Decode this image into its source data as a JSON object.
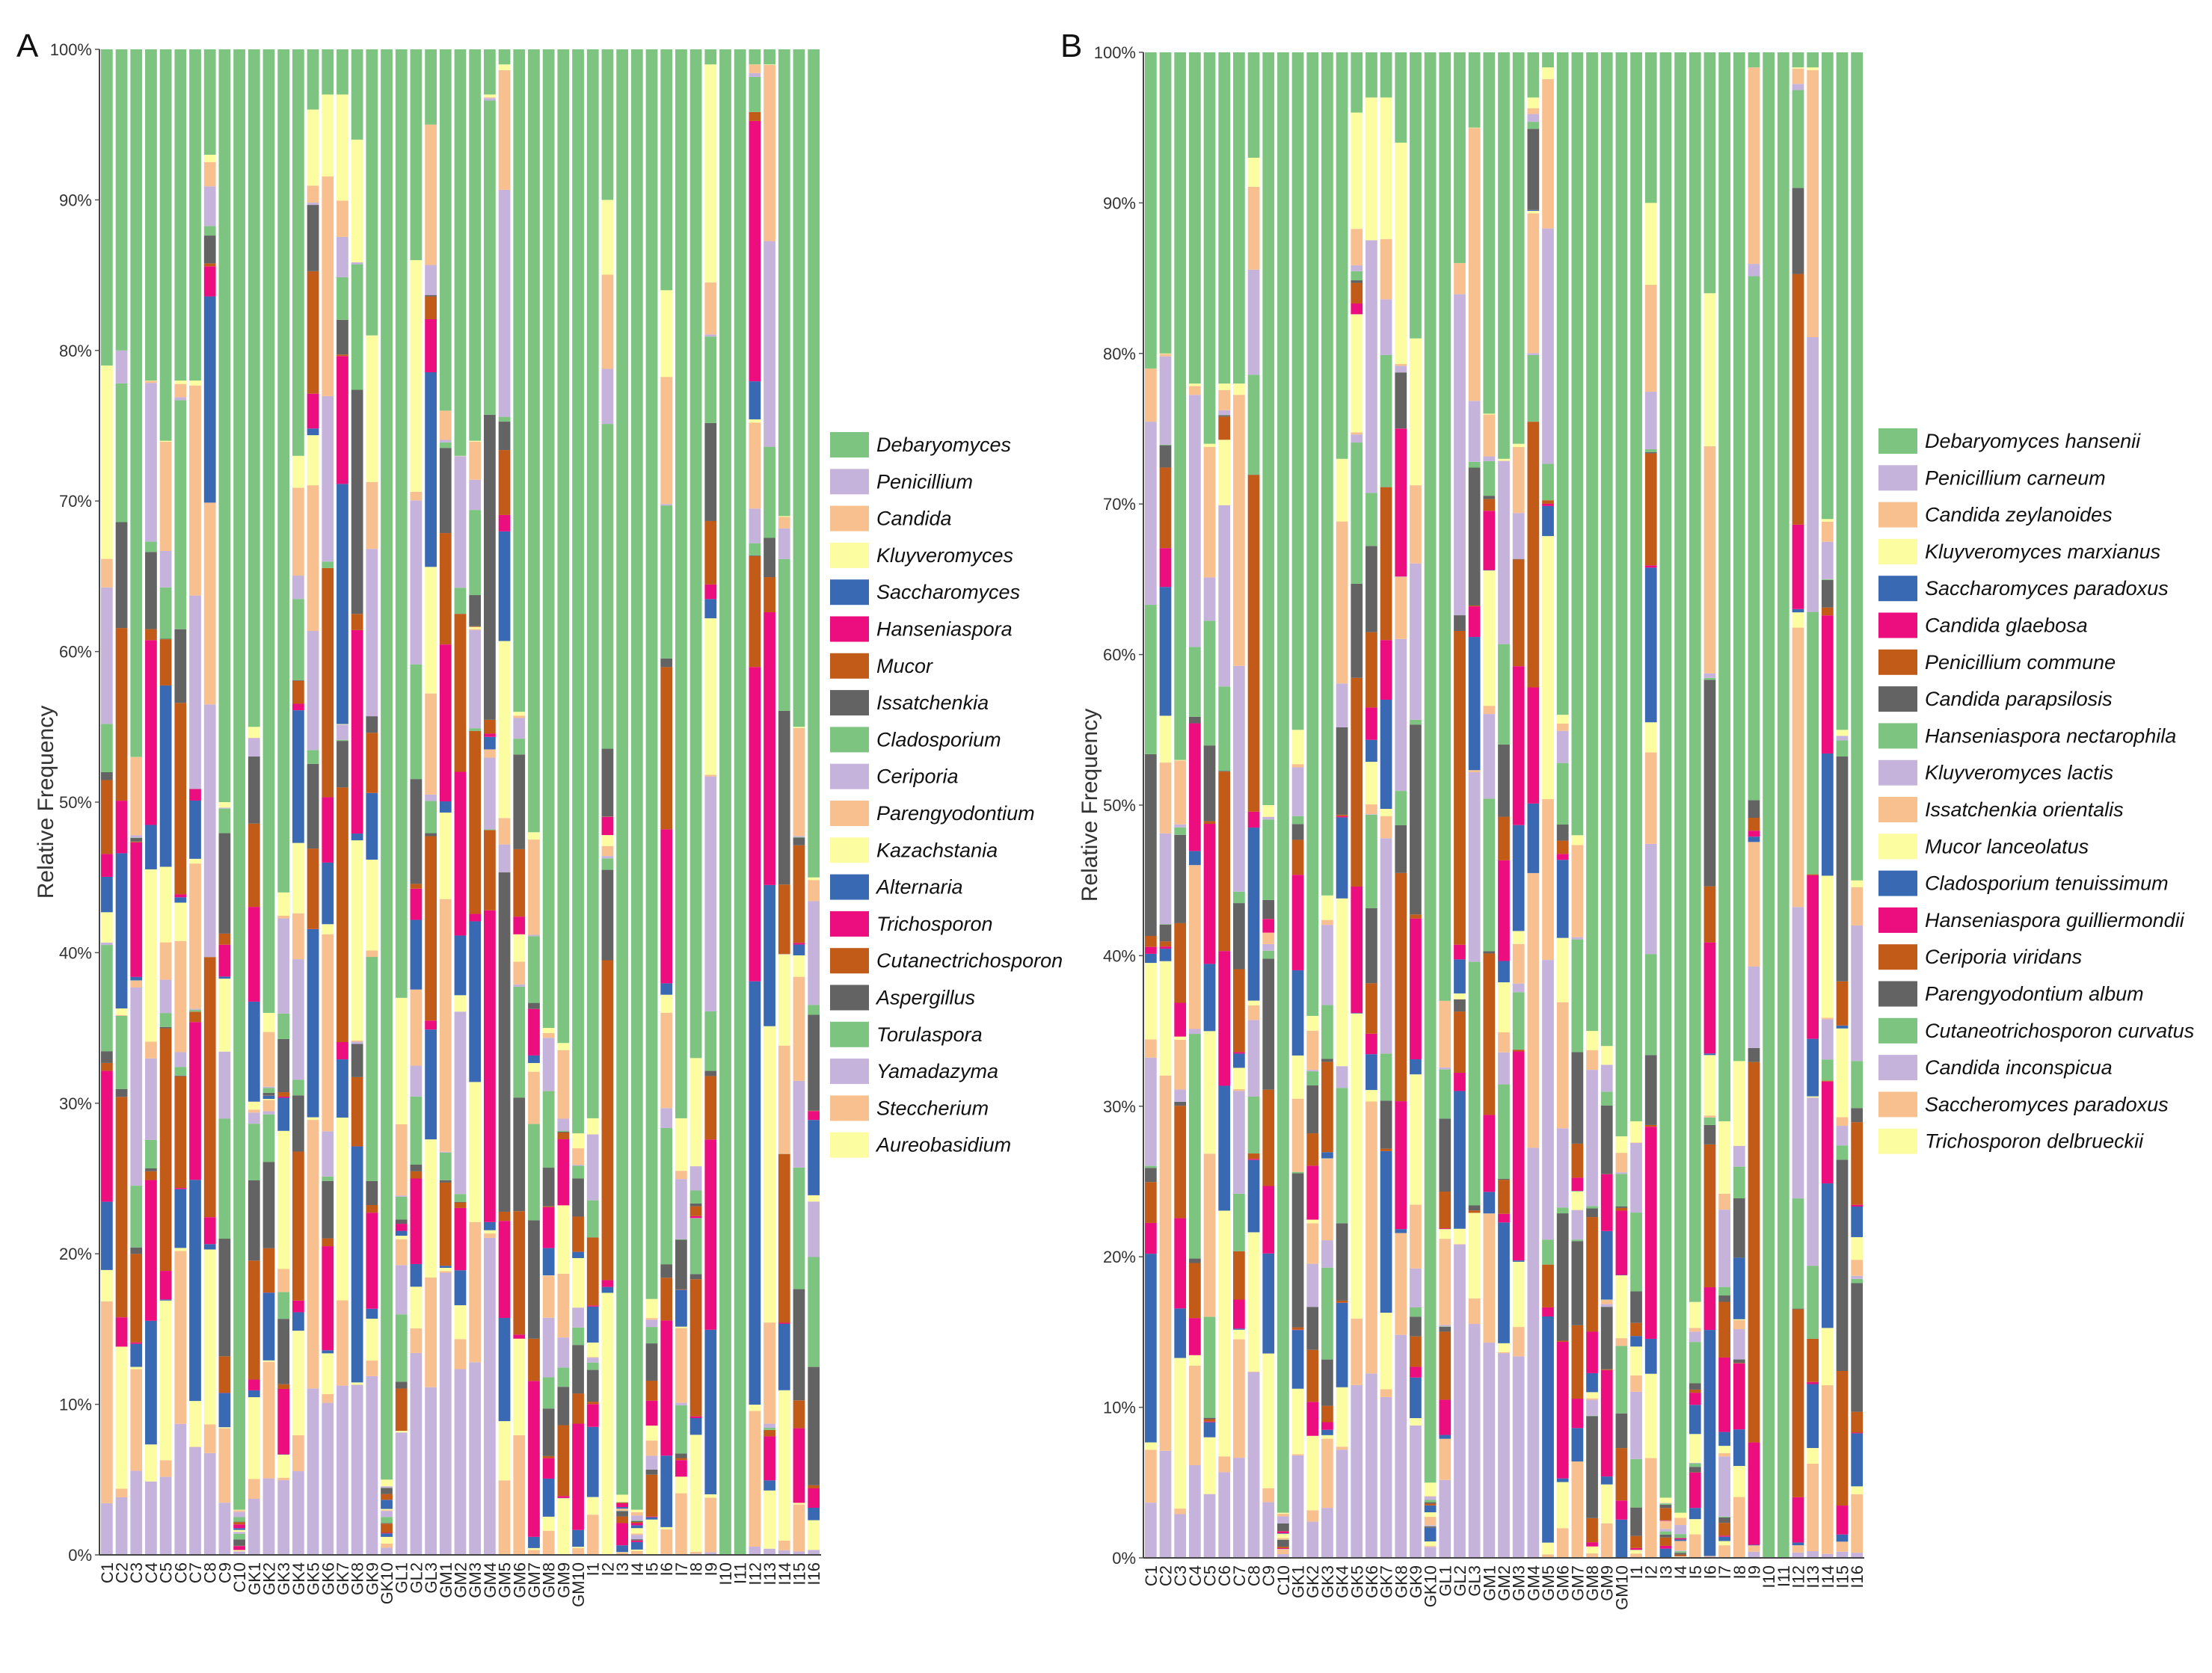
{
  "chart_data": [
    {
      "type": "bar",
      "stacked": true,
      "panel_label": "A",
      "ylabel": "Relative Frequency",
      "ylim": [
        0,
        100
      ],
      "yticks": [
        "0%",
        "10%",
        "20%",
        "30%",
        "40%",
        "50%",
        "60%",
        "70%",
        "80%",
        "90%",
        "100%"
      ],
      "categories": [
        "C1",
        "C2",
        "C3",
        "C4",
        "C5",
        "C6",
        "C7",
        "C8",
        "C9",
        "C10",
        "GK1",
        "GK2",
        "GK3",
        "GK4",
        "GK5",
        "GK6",
        "GK7",
        "GK8",
        "GK9",
        "GK10",
        "GL1",
        "GL2",
        "GL3",
        "GM1",
        "GM2",
        "GM3",
        "GM4",
        "GM5",
        "GM6",
        "GM7",
        "GM8",
        "GM9",
        "GM10",
        "I1",
        "I2",
        "I3",
        "I4",
        "I5",
        "I6",
        "I7",
        "I8",
        "I9",
        "I10",
        "I11",
        "I12",
        "I13",
        "I14",
        "I15",
        "I16"
      ],
      "dominant_top_taxon": "Debaryomyces",
      "top_taxon_share": [
        21,
        20,
        47,
        22,
        26,
        22,
        22,
        7,
        50,
        97,
        45,
        64,
        56,
        27,
        4,
        3,
        3,
        6,
        19,
        95,
        63,
        14,
        5,
        24,
        27,
        26,
        3,
        1,
        44,
        52,
        65,
        66,
        72,
        71,
        10,
        96,
        97,
        83,
        16,
        71,
        67,
        1,
        100,
        100,
        1,
        1,
        31,
        45,
        55
      ],
      "series": [
        {
          "name": "Debaryomyces",
          "color": "#7cc47f"
        },
        {
          "name": "Penicillium",
          "color": "#c6b3dc"
        },
        {
          "name": "Candida",
          "color": "#f9c08f"
        },
        {
          "name": "Kluyveromyces",
          "color": "#fcfca0"
        },
        {
          "name": "Saccharomyces",
          "color": "#3a69b3"
        },
        {
          "name": "Hanseniaspora",
          "color": "#ec0d7f"
        },
        {
          "name": "Mucor",
          "color": "#c25a18"
        },
        {
          "name": "Issatchenkia",
          "color": "#636363"
        },
        {
          "name": "Cladosporium",
          "color": "#7cc47f"
        },
        {
          "name": "Ceriporia",
          "color": "#c6b3dc"
        },
        {
          "name": "Parengyodontium",
          "color": "#f9c08f"
        },
        {
          "name": "Kazachstania",
          "color": "#fcfca0"
        },
        {
          "name": "Alternaria",
          "color": "#3a69b3"
        },
        {
          "name": "Trichosporon",
          "color": "#ec0d7f"
        },
        {
          "name": "Cutanectrichosporon",
          "color": "#c25a18"
        },
        {
          "name": "Aspergillus",
          "color": "#636363"
        },
        {
          "name": "Torulaspora",
          "color": "#7cc47f"
        },
        {
          "name": "Yamadazyma",
          "color": "#c6b3dc"
        },
        {
          "name": "Steccherium",
          "color": "#f9c08f"
        },
        {
          "name": "Aureobasidium",
          "color": "#fcfca0"
        }
      ]
    },
    {
      "type": "bar",
      "stacked": true,
      "panel_label": "B",
      "ylabel": "Relative Frequency",
      "ylim": [
        0,
        100
      ],
      "yticks": [
        "0%",
        "10%",
        "20%",
        "30%",
        "40%",
        "50%",
        "60%",
        "70%",
        "80%",
        "90%",
        "100%"
      ],
      "categories": [
        "C1",
        "C2",
        "C3",
        "C4",
        "C5",
        "C6",
        "C7",
        "C8",
        "C9",
        "C10",
        "GK1",
        "GK2",
        "GK3",
        "GK4",
        "GK5",
        "GK6",
        "GK7",
        "GK8",
        "GK9",
        "GK10",
        "GL1",
        "GL2",
        "GL3",
        "GM1",
        "GM2",
        "GM3",
        "GM4",
        "GM5",
        "GM6",
        "GM7",
        "GM8",
        "GM9",
        "GM10",
        "I1",
        "I2",
        "I3",
        "I4",
        "I5",
        "I6",
        "I7",
        "I8",
        "I9",
        "I10",
        "I11",
        "I12",
        "I13",
        "I14",
        "I15",
        "I16"
      ],
      "dominant_top_taxon": "Debaryomyces hansenii",
      "top_taxon_share": [
        21,
        20,
        47,
        22,
        26,
        22,
        22,
        7,
        50,
        97,
        45,
        64,
        56,
        27,
        4,
        3,
        3,
        6,
        19,
        95,
        63,
        14,
        5,
        24,
        27,
        26,
        3,
        1,
        44,
        52,
        65,
        66,
        72,
        71,
        10,
        96,
        97,
        83,
        16,
        71,
        67,
        1,
        100,
        100,
        1,
        1,
        31,
        45,
        55
      ],
      "series": [
        {
          "name": "Debaryomyces hansenii",
          "color": "#7cc47f"
        },
        {
          "name": "Penicillium carneum",
          "color": "#c6b3dc"
        },
        {
          "name": "Candida zeylanoides",
          "color": "#f9c08f"
        },
        {
          "name": "Kluyveromyces marxianus",
          "color": "#fcfca0"
        },
        {
          "name": "Saccharomyces paradoxus",
          "color": "#3a69b3"
        },
        {
          "name": "Candida glaebosa",
          "color": "#ec0d7f"
        },
        {
          "name": "Penicillium commune",
          "color": "#c25a18"
        },
        {
          "name": "Candida parapsilosis",
          "color": "#636363"
        },
        {
          "name": "Hanseniaspora nectarophila",
          "color": "#7cc47f"
        },
        {
          "name": "Kluyveromyces lactis",
          "color": "#c6b3dc"
        },
        {
          "name": "Issatchenkia orientalis",
          "color": "#f9c08f"
        },
        {
          "name": "Mucor lanceolatus",
          "color": "#fcfca0"
        },
        {
          "name": "Cladosporium tenuissimum",
          "color": "#3a69b3"
        },
        {
          "name": "Hanseniaspora guilliermondii",
          "color": "#ec0d7f"
        },
        {
          "name": "Ceriporia viridans",
          "color": "#c25a18"
        },
        {
          "name": "Parengyodontium album",
          "color": "#636363"
        },
        {
          "name": "Cutaneotrichosporon curvatus",
          "color": "#7cc47f"
        },
        {
          "name": "Candida inconspicua",
          "color": "#c6b3dc"
        },
        {
          "name": "Saccheromyces paradoxus",
          "color": "#f9c08f"
        },
        {
          "name": "Trichosporon delbrueckii",
          "color": "#fcfca0"
        }
      ]
    }
  ]
}
